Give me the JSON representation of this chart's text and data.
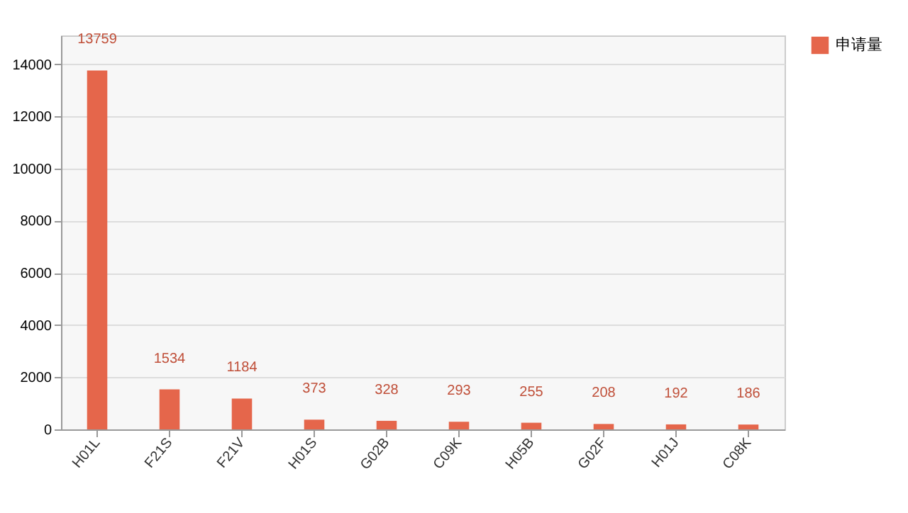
{
  "chart_data": {
    "type": "bar",
    "categories": [
      "H01L",
      "F21S",
      "F21V",
      "H01S",
      "G02B",
      "C09K",
      "H05B",
      "G02F",
      "H01J",
      "C08K"
    ],
    "series": [
      {
        "name": "申请量",
        "color": "#e5664b",
        "values": [
          13759,
          1534,
          1184,
          373,
          328,
          293,
          255,
          208,
          192,
          186
        ]
      }
    ],
    "ylim": [
      0,
      15100
    ],
    "yticks": [
      0,
      2000,
      4000,
      6000,
      8000,
      10000,
      12000,
      14000
    ],
    "grid": "y",
    "legend": "top right",
    "data_labels": true
  }
}
